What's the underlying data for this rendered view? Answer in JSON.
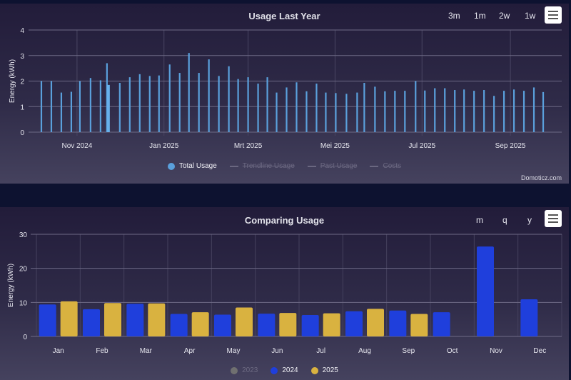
{
  "colors": {
    "total_usage": "#5aa0dc",
    "total_usage_highlight": "#67b1ec",
    "y2023": "#707070",
    "y2024": "#1f3fdc",
    "y2025": "#d9b240",
    "grid": "#6e6a86",
    "tick_text": "#e6e6ee"
  },
  "top_panel": {
    "title": "Usage Last Year",
    "range_buttons": [
      "3m",
      "1m",
      "2w",
      "1w"
    ],
    "menu_icon": "hamburger-menu-icon",
    "legend": [
      {
        "label": "Total Usage",
        "state": "on",
        "marker": "dot"
      },
      {
        "label": "Trendline Usage",
        "state": "off",
        "marker": "line"
      },
      {
        "label": "Past Usage",
        "state": "off",
        "marker": "line"
      },
      {
        "label": "Costs",
        "state": "off",
        "marker": "line"
      }
    ],
    "credit": "Domoticz.com"
  },
  "bottom_panel": {
    "title": "Comparing Usage",
    "range_buttons": [
      "m",
      "q",
      "y"
    ],
    "menu_icon": "hamburger-menu-icon",
    "legend": [
      {
        "label": "2023",
        "state": "off",
        "color_key": "y2023"
      },
      {
        "label": "2024",
        "state": "on",
        "color_key": "y2024"
      },
      {
        "label": "2025",
        "state": "on",
        "color_key": "y2025"
      }
    ]
  },
  "chart_data": [
    {
      "type": "bar",
      "title": "Usage Last Year",
      "xlabel": "",
      "ylabel": "Energy (kWh)",
      "ylim": [
        0,
        4
      ],
      "yticks": [
        0,
        1,
        2,
        3,
        4
      ],
      "grid": true,
      "legend_position": "bottom",
      "x_range_days": [
        -34,
        340
      ],
      "xticks": [
        {
          "label": "Nov 2024",
          "day": 0
        },
        {
          "label": "Jan 2025",
          "day": 61
        },
        {
          "label": "Mrt 2025",
          "day": 120
        },
        {
          "label": "Mei 2025",
          "day": 181
        },
        {
          "label": "Jul 2025",
          "day": 242
        },
        {
          "label": "Sep 2025",
          "day": 304
        }
      ],
      "x_unit": "days since 1 Nov 2024",
      "series": [
        {
          "name": "Total Usage",
          "points": [
            {
              "day": -25,
              "value": 2.0
            },
            {
              "day": -18,
              "value": 2.0
            },
            {
              "day": -11,
              "value": 1.55
            },
            {
              "day": -4,
              "value": 1.58
            },
            {
              "day": 2,
              "value": 2.0
            },
            {
              "day": 9.5,
              "value": 2.12
            },
            {
              "day": 16.5,
              "value": 2.03
            },
            {
              "day": 21,
              "value": 2.7
            },
            {
              "day": 22,
              "value": 1.85,
              "highlight": true
            },
            {
              "day": 30,
              "value": 1.93
            },
            {
              "day": 37,
              "value": 2.15
            },
            {
              "day": 44,
              "value": 2.27
            },
            {
              "day": 51,
              "value": 2.2
            },
            {
              "day": 57.5,
              "value": 2.22
            },
            {
              "day": 65,
              "value": 2.65
            },
            {
              "day": 72,
              "value": 2.32
            },
            {
              "day": 78.5,
              "value": 3.1
            },
            {
              "day": 85.5,
              "value": 2.32
            },
            {
              "day": 92.5,
              "value": 2.85
            },
            {
              "day": 99.5,
              "value": 2.2
            },
            {
              "day": 106.5,
              "value": 2.58
            },
            {
              "day": 113,
              "value": 2.08
            },
            {
              "day": 120,
              "value": 2.15
            },
            {
              "day": 127,
              "value": 1.9
            },
            {
              "day": 133.5,
              "value": 2.15
            },
            {
              "day": 140,
              "value": 1.55
            },
            {
              "day": 147,
              "value": 1.75
            },
            {
              "day": 154,
              "value": 1.95
            },
            {
              "day": 161,
              "value": 1.6
            },
            {
              "day": 168,
              "value": 1.9
            },
            {
              "day": 174.5,
              "value": 1.55
            },
            {
              "day": 181.5,
              "value": 1.53
            },
            {
              "day": 189,
              "value": 1.5
            },
            {
              "day": 196.5,
              "value": 1.55
            },
            {
              "day": 201.5,
              "value": 1.93
            },
            {
              "day": 209,
              "value": 1.78
            },
            {
              "day": 216,
              "value": 1.6
            },
            {
              "day": 223,
              "value": 1.62
            },
            {
              "day": 230,
              "value": 1.62
            },
            {
              "day": 237.5,
              "value": 2.0
            },
            {
              "day": 244,
              "value": 1.63
            },
            {
              "day": 251,
              "value": 1.72
            },
            {
              "day": 258,
              "value": 1.72
            },
            {
              "day": 265,
              "value": 1.65
            },
            {
              "day": 271.5,
              "value": 1.67
            },
            {
              "day": 278.5,
              "value": 1.62
            },
            {
              "day": 285.5,
              "value": 1.65
            },
            {
              "day": 292.5,
              "value": 1.42
            },
            {
              "day": 299.5,
              "value": 1.62
            },
            {
              "day": 306.5,
              "value": 1.67
            },
            {
              "day": 313.5,
              "value": 1.62
            },
            {
              "day": 320.5,
              "value": 1.75
            },
            {
              "day": 327,
              "value": 1.57
            }
          ]
        }
      ]
    },
    {
      "type": "bar",
      "title": "Comparing Usage",
      "xlabel": "",
      "ylabel": "Energy (kWh)",
      "ylim": [
        0,
        30
      ],
      "yticks": [
        0,
        10,
        20,
        30
      ],
      "grid": true,
      "legend_position": "bottom",
      "categories": [
        "Jan",
        "Feb",
        "Mar",
        "Apr",
        "May",
        "Jun",
        "Jul",
        "Aug",
        "Sep",
        "Oct",
        "Nov",
        "Dec"
      ],
      "series": [
        {
          "name": "2023",
          "visible": false,
          "values": []
        },
        {
          "name": "2024",
          "visible": true,
          "values": [
            9.4,
            8.0,
            9.6,
            6.6,
            6.4,
            6.7,
            6.3,
            7.4,
            7.6,
            7.1,
            26.4,
            10.9
          ]
        },
        {
          "name": "2025",
          "visible": true,
          "values": [
            10.3,
            9.8,
            9.7,
            7.1,
            8.5,
            6.9,
            6.8,
            8.1,
            6.6,
            null,
            null,
            null
          ]
        }
      ]
    }
  ]
}
